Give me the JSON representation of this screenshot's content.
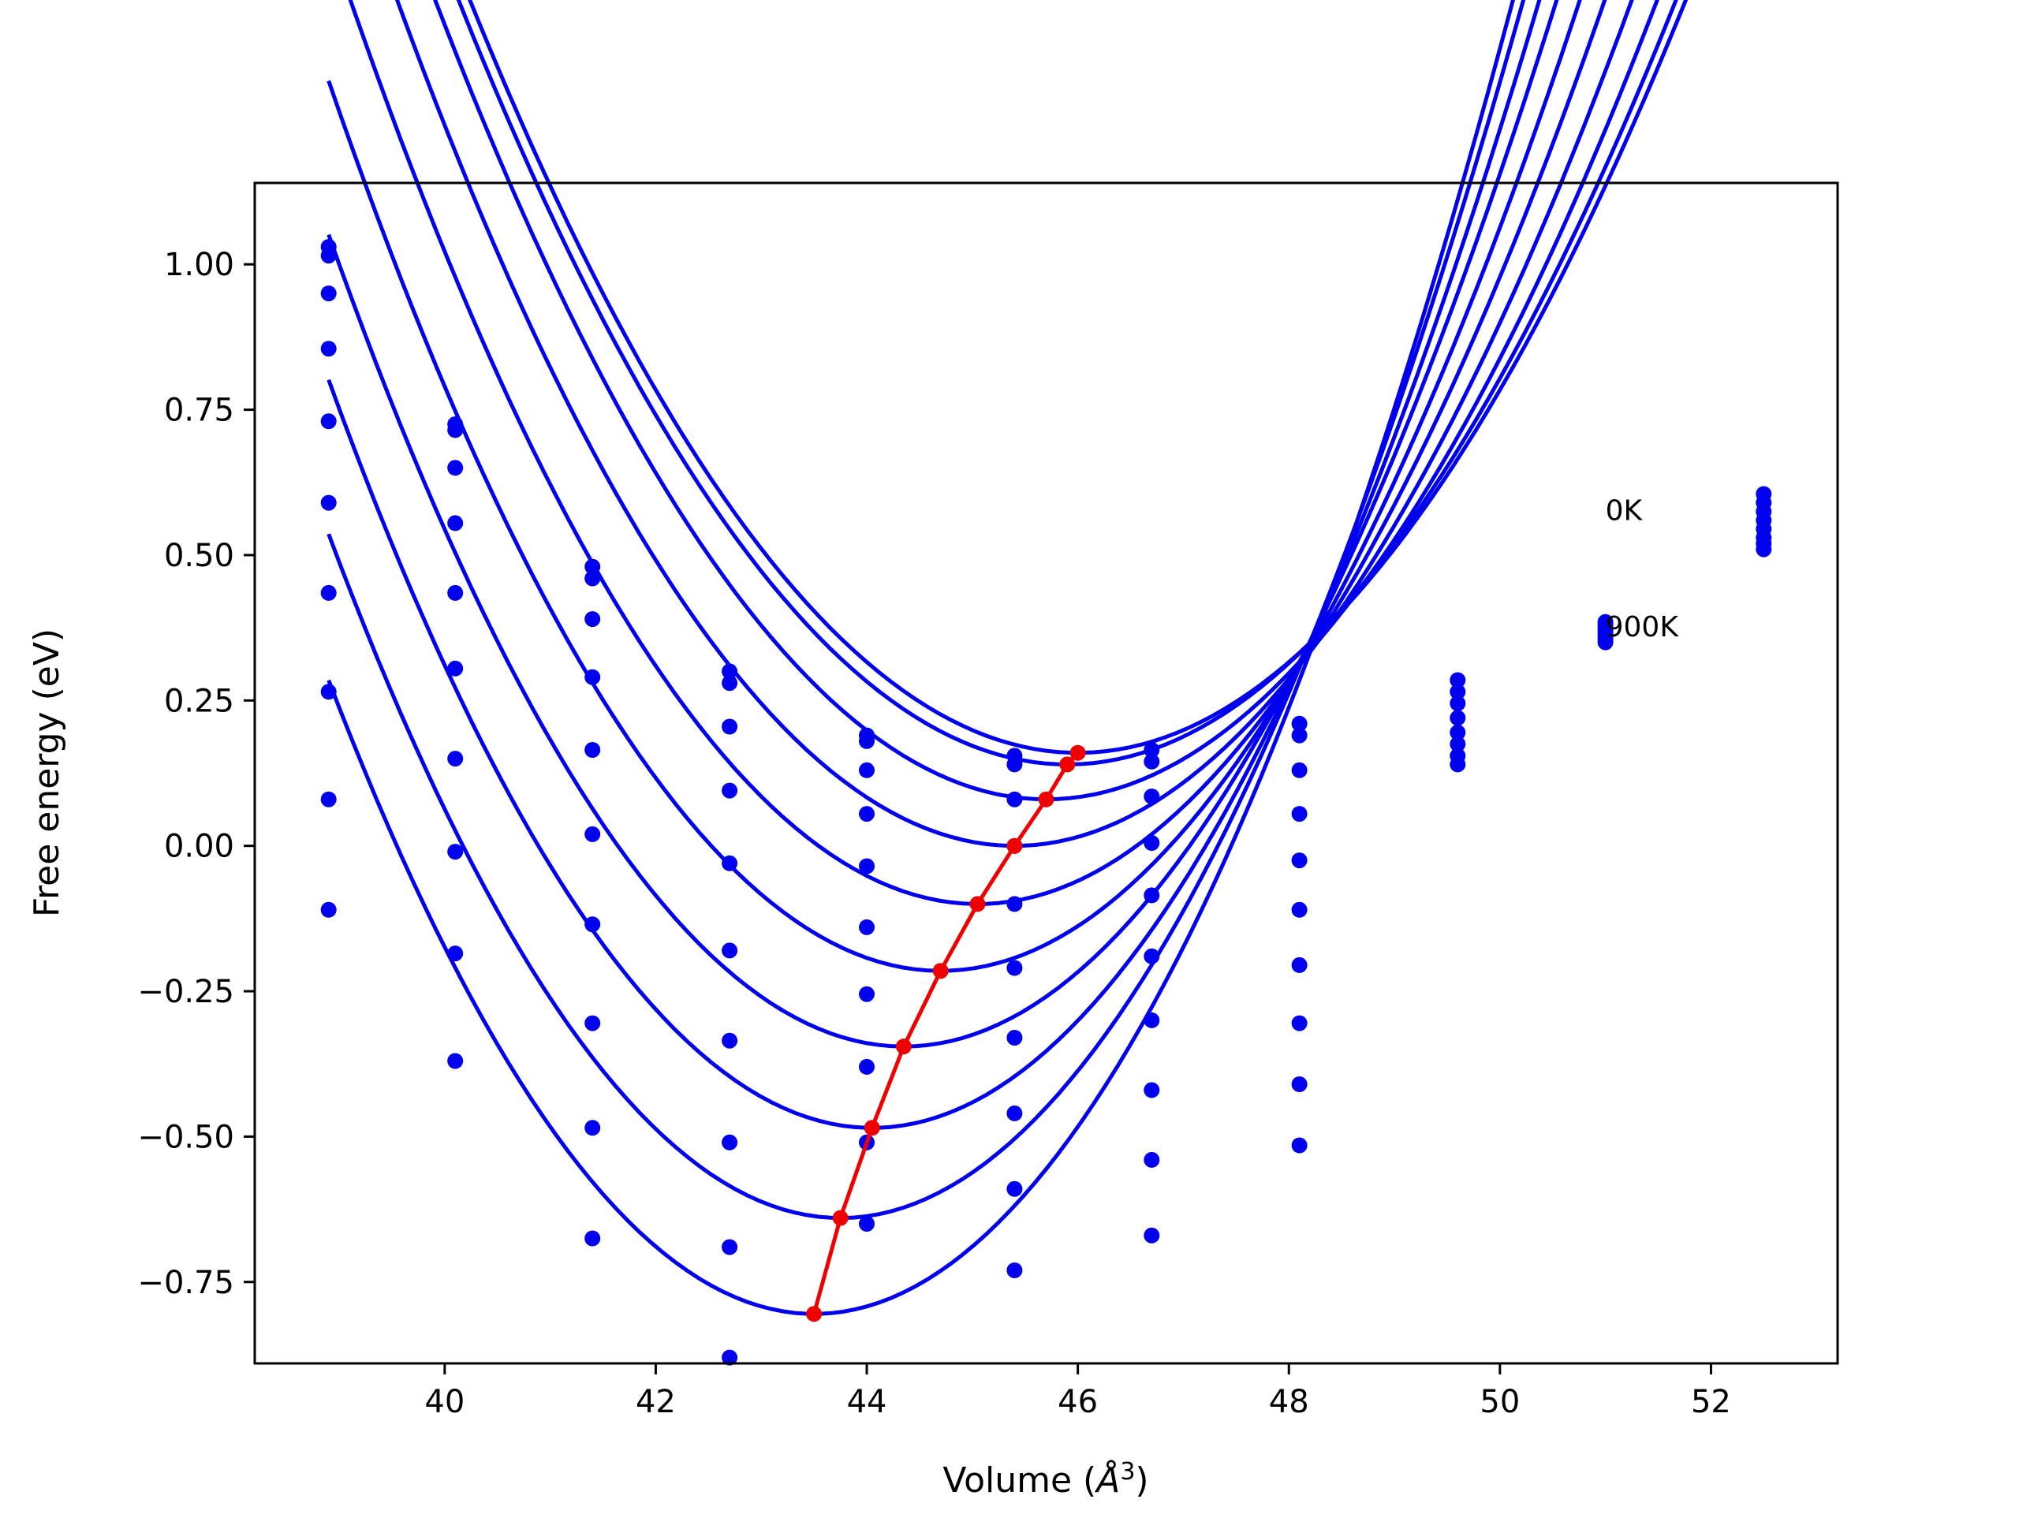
{
  "chart_data": {
    "type": "line",
    "title": "",
    "xlabel_prefix": "Volume (",
    "xlabel_symbol": "Å",
    "xlabel_exp": "3",
    "xlabel_suffix": ")",
    "ylabel": "Free energy (eV)",
    "xlim": [
      38.2,
      53.2
    ],
    "ylim": [
      -0.89,
      1.14
    ],
    "xticks": [
      40,
      42,
      44,
      46,
      48,
      50,
      52
    ],
    "yticks": [
      1.0,
      0.75,
      0.5,
      0.25,
      0.0,
      -0.25,
      -0.5,
      -0.75
    ],
    "xtick_labels": [
      "40",
      "42",
      "44",
      "46",
      "48",
      "50",
      "52"
    ],
    "ytick_labels": [
      "1.00",
      "0.75",
      "0.50",
      "0.25",
      "0.00",
      "−0.25",
      "−0.50",
      "−0.75"
    ],
    "annotations": [
      {
        "text": "0K",
        "x": 51.0,
        "y": 0.56
      },
      {
        "text": "900K",
        "x": 51.0,
        "y": 0.36
      }
    ],
    "colors": {
      "curves": "#0000ee",
      "minima": "#ee0000",
      "axes": "#000000"
    },
    "sample_volumes": [
      38.9,
      40.1,
      41.4,
      42.7,
      44.0,
      45.4,
      46.7,
      48.1,
      49.6,
      51.0,
      52.5
    ],
    "series": [
      {
        "V0": 46.0,
        "Fmin": 0.16,
        "B": 0.039,
        "points": [
          1.03,
          0.725,
          0.48,
          0.3,
          0.19,
          0.155,
          0.165,
          0.21,
          0.285,
          0.385,
          0.51
        ]
      },
      {
        "V0": 45.9,
        "Fmin": 0.14,
        "B": 0.0395,
        "points": [
          1.015,
          0.715,
          0.46,
          0.28,
          0.18,
          0.14,
          0.145,
          0.19,
          0.265,
          0.38,
          0.52
        ]
      },
      {
        "V0": 45.7,
        "Fmin": 0.08,
        "B": 0.041,
        "points": [
          0.95,
          0.65,
          0.39,
          0.205,
          0.13,
          0.08,
          0.085,
          0.13,
          0.245,
          0.375,
          0.53
        ]
      },
      {
        "V0": 45.4,
        "Fmin": 0.0,
        "B": 0.0425,
        "points": [
          0.855,
          0.555,
          0.29,
          0.095,
          0.055,
          0.0,
          0.005,
          0.055,
          0.22,
          0.37,
          0.545
        ]
      },
      {
        "V0": 45.05,
        "Fmin": -0.1,
        "B": 0.044,
        "points": [
          0.73,
          0.435,
          0.165,
          -0.03,
          -0.035,
          -0.1,
          -0.085,
          -0.025,
          0.195,
          0.365,
          0.56
        ]
      },
      {
        "V0": 44.7,
        "Fmin": -0.215,
        "B": 0.0455,
        "points": [
          0.59,
          0.305,
          0.02,
          -0.18,
          -0.14,
          -0.21,
          -0.19,
          -0.11,
          0.175,
          0.36,
          0.575
        ]
      },
      {
        "V0": 44.35,
        "Fmin": -0.345,
        "B": 0.047,
        "points": [
          0.435,
          0.15,
          -0.135,
          -0.335,
          -0.255,
          -0.33,
          -0.3,
          -0.205,
          0.155,
          0.355,
          0.59
        ]
      },
      {
        "V0": 44.05,
        "Fmin": -0.485,
        "B": 0.0485,
        "points": [
          0.265,
          -0.01,
          -0.305,
          -0.51,
          -0.38,
          -0.46,
          -0.42,
          -0.305,
          0.14,
          0.35,
          0.605
        ]
      },
      {
        "V0": 43.75,
        "Fmin": -0.64,
        "B": 0.05,
        "points": [
          0.08,
          -0.185,
          -0.485,
          -0.69,
          -0.51,
          -0.59,
          -0.54,
          -0.41,
          null,
          null,
          null
        ]
      },
      {
        "V0": 43.5,
        "Fmin": -0.805,
        "B": 0.0515,
        "points": [
          -0.11,
          -0.37,
          -0.675,
          -0.88,
          -0.65,
          -0.73,
          -0.67,
          -0.515,
          null,
          null,
          null
        ]
      }
    ],
    "minima_curve": {
      "x": [
        46.0,
        45.9,
        45.7,
        45.4,
        45.05,
        44.7,
        44.35,
        44.05,
        43.75,
        43.5
      ],
      "y": [
        0.16,
        0.14,
        0.08,
        0.0,
        -0.1,
        -0.215,
        -0.345,
        -0.485,
        -0.64,
        -0.805
      ]
    }
  }
}
